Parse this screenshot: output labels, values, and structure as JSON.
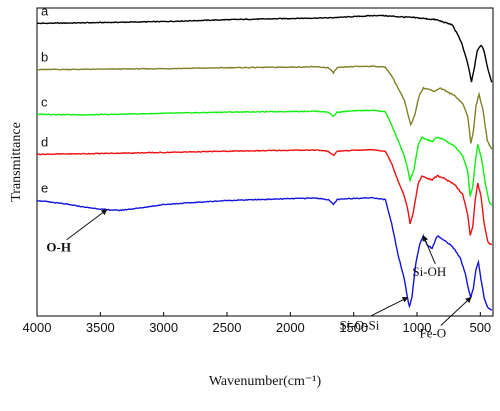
{
  "chart_data": {
    "type": "line",
    "title": "",
    "xlabel": "Wavenumber(cm⁻¹)",
    "ylabel": "Transmittance",
    "xlim": [
      4000,
      400
    ],
    "x_reversed": true,
    "y_ticks_shown": false,
    "grid": false,
    "x_ticks": [
      4000,
      3500,
      3000,
      2500,
      2000,
      1500,
      1000,
      500
    ],
    "series": [
      {
        "name": "a",
        "color": "#000000",
        "points": [
          [
            4000,
            0.95
          ],
          [
            3600,
            0.952
          ],
          [
            3000,
            0.956
          ],
          [
            2500,
            0.962
          ],
          [
            2000,
            0.966
          ],
          [
            1700,
            0.968
          ],
          [
            1500,
            0.972
          ],
          [
            1300,
            0.976
          ],
          [
            1150,
            0.972
          ],
          [
            1000,
            0.968
          ],
          [
            850,
            0.962
          ],
          [
            720,
            0.945
          ],
          [
            650,
            0.89
          ],
          [
            600,
            0.82
          ],
          [
            570,
            0.76
          ],
          [
            545,
            0.81
          ],
          [
            525,
            0.86
          ],
          [
            495,
            0.88
          ],
          [
            470,
            0.86
          ],
          [
            440,
            0.8
          ],
          [
            410,
            0.76
          ]
        ]
      },
      {
        "name": "b",
        "color": "#808028",
        "points": [
          [
            4000,
            0.8
          ],
          [
            3600,
            0.801
          ],
          [
            3000,
            0.803
          ],
          [
            2500,
            0.806
          ],
          [
            2000,
            0.808
          ],
          [
            1800,
            0.809
          ],
          [
            1700,
            0.806
          ],
          [
            1660,
            0.79
          ],
          [
            1630,
            0.806
          ],
          [
            1500,
            0.81
          ],
          [
            1350,
            0.811
          ],
          [
            1250,
            0.808
          ],
          [
            1200,
            0.78
          ],
          [
            1150,
            0.74
          ],
          [
            1100,
            0.7
          ],
          [
            1075,
            0.66
          ],
          [
            1050,
            0.62
          ],
          [
            1020,
            0.65
          ],
          [
            980,
            0.72
          ],
          [
            950,
            0.74
          ],
          [
            900,
            0.735
          ],
          [
            860,
            0.73
          ],
          [
            820,
            0.74
          ],
          [
            790,
            0.735
          ],
          [
            750,
            0.725
          ],
          [
            700,
            0.715
          ],
          [
            640,
            0.69
          ],
          [
            600,
            0.65
          ],
          [
            575,
            0.56
          ],
          [
            555,
            0.6
          ],
          [
            535,
            0.68
          ],
          [
            510,
            0.72
          ],
          [
            480,
            0.67
          ],
          [
            445,
            0.57
          ],
          [
            410,
            0.54
          ]
        ]
      },
      {
        "name": "c",
        "color": "#11ee11",
        "points": [
          [
            4000,
            0.655
          ],
          [
            3600,
            0.653
          ],
          [
            3000,
            0.658
          ],
          [
            2500,
            0.662
          ],
          [
            2000,
            0.664
          ],
          [
            1800,
            0.665
          ],
          [
            1700,
            0.662
          ],
          [
            1660,
            0.648
          ],
          [
            1630,
            0.662
          ],
          [
            1500,
            0.666
          ],
          [
            1350,
            0.668
          ],
          [
            1250,
            0.663
          ],
          [
            1200,
            0.62
          ],
          [
            1150,
            0.57
          ],
          [
            1100,
            0.52
          ],
          [
            1075,
            0.48
          ],
          [
            1055,
            0.44
          ],
          [
            1025,
            0.475
          ],
          [
            990,
            0.555
          ],
          [
            960,
            0.58
          ],
          [
            920,
            0.572
          ],
          [
            880,
            0.567
          ],
          [
            840,
            0.58
          ],
          [
            800,
            0.575
          ],
          [
            760,
            0.565
          ],
          [
            700,
            0.55
          ],
          [
            640,
            0.52
          ],
          [
            600,
            0.47
          ],
          [
            580,
            0.39
          ],
          [
            560,
            0.42
          ],
          [
            540,
            0.5
          ],
          [
            520,
            0.555
          ],
          [
            490,
            0.51
          ],
          [
            460,
            0.43
          ],
          [
            430,
            0.37
          ],
          [
            410,
            0.36
          ]
        ]
      },
      {
        "name": "d",
        "color": "#ee1111",
        "points": [
          [
            4000,
            0.525
          ],
          [
            3600,
            0.527
          ],
          [
            3000,
            0.531
          ],
          [
            2500,
            0.535
          ],
          [
            2000,
            0.538
          ],
          [
            1800,
            0.539
          ],
          [
            1700,
            0.535
          ],
          [
            1660,
            0.521
          ],
          [
            1630,
            0.535
          ],
          [
            1500,
            0.538
          ],
          [
            1350,
            0.54
          ],
          [
            1250,
            0.535
          ],
          [
            1200,
            0.495
          ],
          [
            1150,
            0.44
          ],
          [
            1100,
            0.39
          ],
          [
            1075,
            0.35
          ],
          [
            1055,
            0.3
          ],
          [
            1030,
            0.335
          ],
          [
            990,
            0.43
          ],
          [
            960,
            0.455
          ],
          [
            920,
            0.447
          ],
          [
            880,
            0.442
          ],
          [
            840,
            0.455
          ],
          [
            800,
            0.45
          ],
          [
            760,
            0.44
          ],
          [
            700,
            0.425
          ],
          [
            640,
            0.395
          ],
          [
            600,
            0.33
          ],
          [
            580,
            0.26
          ],
          [
            560,
            0.29
          ],
          [
            540,
            0.38
          ],
          [
            520,
            0.43
          ],
          [
            495,
            0.39
          ],
          [
            470,
            0.3
          ],
          [
            440,
            0.24
          ],
          [
            410,
            0.23
          ]
        ]
      },
      {
        "name": "e",
        "color": "#1414dd",
        "points": [
          [
            4000,
            0.375
          ],
          [
            3800,
            0.365
          ],
          [
            3600,
            0.352
          ],
          [
            3450,
            0.345
          ],
          [
            3350,
            0.343
          ],
          [
            3200,
            0.35
          ],
          [
            3000,
            0.362
          ],
          [
            2700,
            0.37
          ],
          [
            2500,
            0.375
          ],
          [
            2000,
            0.381
          ],
          [
            1800,
            0.383
          ],
          [
            1700,
            0.378
          ],
          [
            1660,
            0.362
          ],
          [
            1630,
            0.378
          ],
          [
            1500,
            0.382
          ],
          [
            1350,
            0.384
          ],
          [
            1250,
            0.378
          ],
          [
            1200,
            0.3
          ],
          [
            1150,
            0.2
          ],
          [
            1100,
            0.12
          ],
          [
            1075,
            0.06
          ],
          [
            1060,
            0.03
          ],
          [
            1040,
            0.06
          ],
          [
            1010,
            0.17
          ],
          [
            980,
            0.23
          ],
          [
            950,
            0.26
          ],
          [
            920,
            0.23
          ],
          [
            880,
            0.22
          ],
          [
            840,
            0.26
          ],
          [
            800,
            0.25
          ],
          [
            770,
            0.24
          ],
          [
            720,
            0.225
          ],
          [
            660,
            0.19
          ],
          [
            620,
            0.14
          ],
          [
            590,
            0.08
          ],
          [
            575,
            0.06
          ],
          [
            555,
            0.09
          ],
          [
            535,
            0.15
          ],
          [
            515,
            0.175
          ],
          [
            495,
            0.12
          ],
          [
            470,
            0.06
          ],
          [
            445,
            0.03
          ],
          [
            410,
            0.02
          ]
        ]
      }
    ],
    "annotations": [
      {
        "text": "O-H",
        "x": 3450,
        "y": 0.345
      },
      {
        "text": "Si-OH",
        "x": 950,
        "y": 0.26
      },
      {
        "text": "Si-O-Si",
        "x": 1075,
        "y": 0.06
      },
      {
        "text": "Fe-O",
        "x": 575,
        "y": 0.06
      }
    ]
  }
}
